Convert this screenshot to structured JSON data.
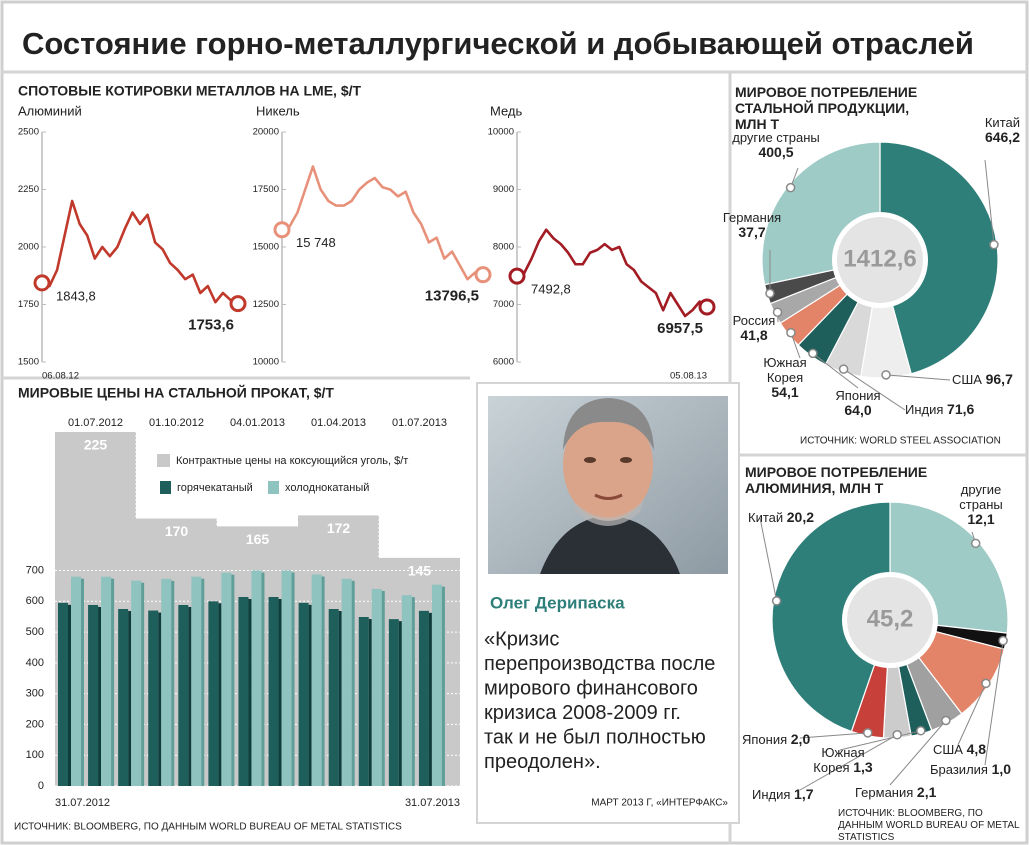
{
  "title": "Состояние горно-металлургической и добывающей отраслей",
  "lme_title": "СПОТОВЫЕ КОТИРОВКИ МЕТАЛЛОВ НА LME, $/Т",
  "source": "ИСТОЧНИК: BLOOMBERG, ПО ДАННЫМ WORLD BUREAU OF METAL STATISTICS",
  "quote": {
    "name": "Олег Дерипаска",
    "lines": [
      "«Кризис",
      "перепроизводства после",
      "мирового финансового",
      "кризиса 2008-2009 гг.",
      "так и не был полностью",
      "преодолен»."
    ],
    "source": "МАРТ 2013 Г, «ИНТЕРФАКС»"
  },
  "chart_data": [
    {
      "type": "line",
      "title": "Алюминий",
      "color": "#c0392b",
      "ylim": [
        1500,
        2500
      ],
      "yticks": [
        1500,
        1750,
        2000,
        2250,
        2500
      ],
      "categories": [
        "06.08.12",
        null,
        null,
        null,
        null,
        null,
        null,
        null,
        null,
        null,
        null,
        null,
        null,
        null,
        null,
        null,
        null,
        null,
        null,
        null,
        null,
        null,
        null,
        null,
        null,
        null,
        null
      ],
      "values": [
        1843.8,
        1830,
        1900,
        2050,
        2200,
        2100,
        2050,
        1950,
        2000,
        1960,
        2000,
        2080,
        2150,
        2100,
        2140,
        2020,
        1990,
        1930,
        1900,
        1860,
        1880,
        1800,
        1830,
        1760,
        1800,
        1770,
        1753.6
      ],
      "value_labels": [
        "1843,8",
        null,
        null,
        null,
        null,
        null,
        null,
        null,
        null,
        null,
        null,
        null,
        null,
        null,
        null,
        null,
        null,
        null,
        null,
        null,
        null,
        null,
        null,
        null,
        null,
        null,
        "1753,6"
      ]
    },
    {
      "type": "line",
      "title": "Никель",
      "color": "#e8917a",
      "ylim": [
        10000,
        20000
      ],
      "yticks": [
        10000,
        12500,
        15000,
        17500,
        20000
      ],
      "values": [
        15748,
        15900,
        16500,
        17500,
        18500,
        17500,
        17000,
        16800,
        16800,
        17000,
        17500,
        17800,
        18000,
        17600,
        17500,
        17200,
        17400,
        16500,
        16000,
        15200,
        15400,
        14500,
        14800,
        14200,
        13600,
        13900,
        13796.5
      ],
      "value_labels": [
        "15 748",
        null,
        null,
        null,
        null,
        null,
        null,
        null,
        null,
        null,
        null,
        null,
        null,
        null,
        null,
        null,
        null,
        null,
        null,
        null,
        null,
        null,
        null,
        null,
        null,
        null,
        "13796,5"
      ]
    },
    {
      "type": "line",
      "title": "Медь",
      "color": "#a31c24",
      "ylim": [
        6000,
        10000
      ],
      "yticks": [
        6000,
        7000,
        8000,
        9000,
        10000
      ],
      "categories": [
        null,
        null,
        null,
        null,
        null,
        null,
        null,
        null,
        null,
        null,
        null,
        null,
        null,
        null,
        null,
        null,
        null,
        null,
        null,
        null,
        null,
        null,
        null,
        null,
        null,
        null,
        "05.08.13"
      ],
      "values": [
        7492.8,
        7550,
        7800,
        8100,
        8300,
        8150,
        8050,
        7900,
        7700,
        7700,
        7900,
        7950,
        8050,
        7950,
        8000,
        7700,
        7600,
        7400,
        7300,
        7200,
        6900,
        7200,
        7000,
        6800,
        6900,
        7050,
        6957.5
      ],
      "value_labels": [
        "7492,8",
        null,
        null,
        null,
        null,
        null,
        null,
        null,
        null,
        null,
        null,
        null,
        null,
        null,
        null,
        null,
        null,
        null,
        null,
        null,
        null,
        null,
        null,
        null,
        null,
        null,
        "6957,5"
      ]
    },
    {
      "type": "bar",
      "title": "МИРОВЫЕ ЦЕНЫ НА СТАЛЬНОЙ ПРОКАТ, $/Т",
      "ylim": [
        0,
        1150
      ],
      "yticks": [
        0,
        100,
        200,
        300,
        400,
        500,
        600,
        700
      ],
      "categories": [
        "31.07.2012",
        null,
        null,
        null,
        null,
        null,
        null,
        null,
        null,
        null,
        null,
        null,
        "31.07.2013"
      ],
      "series": [
        {
          "name": "горячекатаный",
          "color": "#1e5e5b",
          "values": [
            595,
            588,
            575,
            570,
            588,
            600,
            614,
            614,
            595,
            575,
            549,
            542,
            569
          ]
        },
        {
          "name": "холоднокатаный",
          "color": "#8ec3bf",
          "values": [
            680,
            680,
            667,
            673,
            680,
            693,
            700,
            700,
            687,
            673,
            640,
            620,
            654
          ]
        }
      ],
      "coal": {
        "name": "Контрактные цены на коксующийся уголь, $/т",
        "axis": "y2",
        "color": "#c9c9c9",
        "categories": [
          "01.07.2012",
          "01.10.2012",
          "04.01.2013",
          "01.04.2013",
          "01.07.2013"
        ],
        "values": [
          225,
          170,
          165,
          172,
          145
        ]
      },
      "y2lim": [
        0,
        225
      ]
    },
    {
      "type": "pie",
      "title": "МИРОВОЕ ПОТРЕБЛЕНИЕ СТАЛЬНОЙ ПРОДУКЦИИ, МЛН Т",
      "total": 1412.6,
      "total_label": "1412,6",
      "categories": [
        "Китай",
        "США",
        "Индия",
        "Япония",
        "Южная Корея",
        "Россия",
        "Германия",
        "другие страны"
      ],
      "values": [
        646.2,
        96.7,
        71.6,
        64.0,
        54.1,
        41.8,
        37.7,
        400.5
      ],
      "value_labels": [
        "646,2",
        "96,7",
        "71,6",
        "64,0",
        "54,1",
        "41,8",
        "37,7",
        "400,5"
      ],
      "colors": [
        "#2e7f7a",
        "#eeeeee",
        "#d9d9d9",
        "#1e5e5b",
        "#e38368",
        "#a8a8a8",
        "#4a4a4a",
        "#9fcbc6"
      ],
      "source": "ИСТОЧНИК: WORLD STEEL ASSOCIATION"
    },
    {
      "type": "pie",
      "title": "МИРОВОЕ ПОТРЕБЛЕНИЕ АЛЮМИНИЯ, МЛН Т",
      "total": 45.2,
      "total_label": "45,2",
      "categories": [
        "другие страны",
        "Бразилия",
        "США",
        "Германия",
        "Южная Корея",
        "Индия",
        "Япония",
        "Китай"
      ],
      "values": [
        12.1,
        1.0,
        4.8,
        2.1,
        1.3,
        1.7,
        2.0,
        20.2
      ],
      "value_labels": [
        "12,1",
        "1,0",
        "4,8",
        "2,1",
        "1,3",
        "1,7",
        "2,0",
        "20,2"
      ],
      "colors": [
        "#9fcbc6",
        "#111111",
        "#e38368",
        "#a0a0a0",
        "#1e5e5b",
        "#cccccc",
        "#c8403a",
        "#2e7f7a"
      ],
      "source": "ИСТОЧНИК: BLOOMBERG, ПО ДАННЫМ WORLD BUREAU OF METAL STATISTICS"
    }
  ]
}
